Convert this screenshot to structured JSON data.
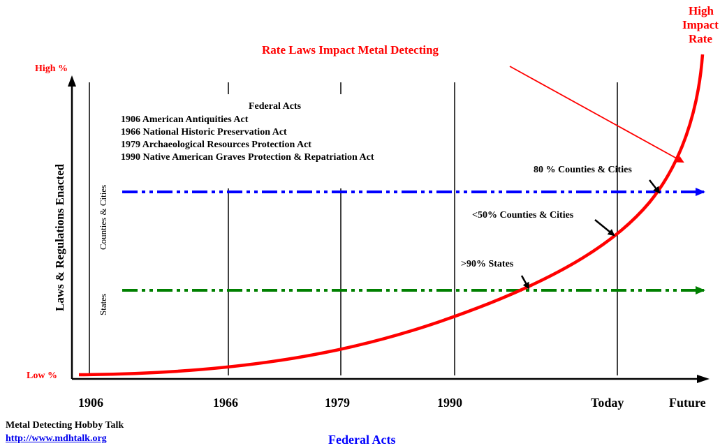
{
  "title": "Rate Laws Impact Metal Detecting",
  "y_axis": {
    "label": "Laws & Regulations Enacted",
    "high_label": "High %",
    "low_label": "Low %"
  },
  "x_axis": {
    "label": "Federal Acts",
    "ticks": [
      "1906",
      "1966",
      "1979",
      "1990",
      "Today",
      "Future"
    ]
  },
  "high_impact_label": [
    "High",
    "Impact",
    "Rate"
  ],
  "federal_acts_box": {
    "heading": "Federal Acts",
    "items": [
      "1906 American Antiquities Act",
      "1966 National Historic Preservation Act",
      "1979 Archaeological Resources Protection Act",
      "1990 Native American Graves Protection & Repatriation Act"
    ]
  },
  "levels": {
    "counties_cities": "Counties & Cities",
    "states": "States"
  },
  "annotations": {
    "counties_80": "80 % Counties & Cities",
    "counties_50": "<50% Counties & Cities",
    "states_90": ">90% States"
  },
  "credit": {
    "name": "Metal Detecting Hobby Talk",
    "url": "http://www.mdhtalk.org"
  },
  "colors": {
    "curve": "#ff0000",
    "counties_line": "#0000ff",
    "states_line": "#008000",
    "axis": "#000000",
    "label_red": "#ff0000",
    "label_blue": "#0000ff"
  }
}
